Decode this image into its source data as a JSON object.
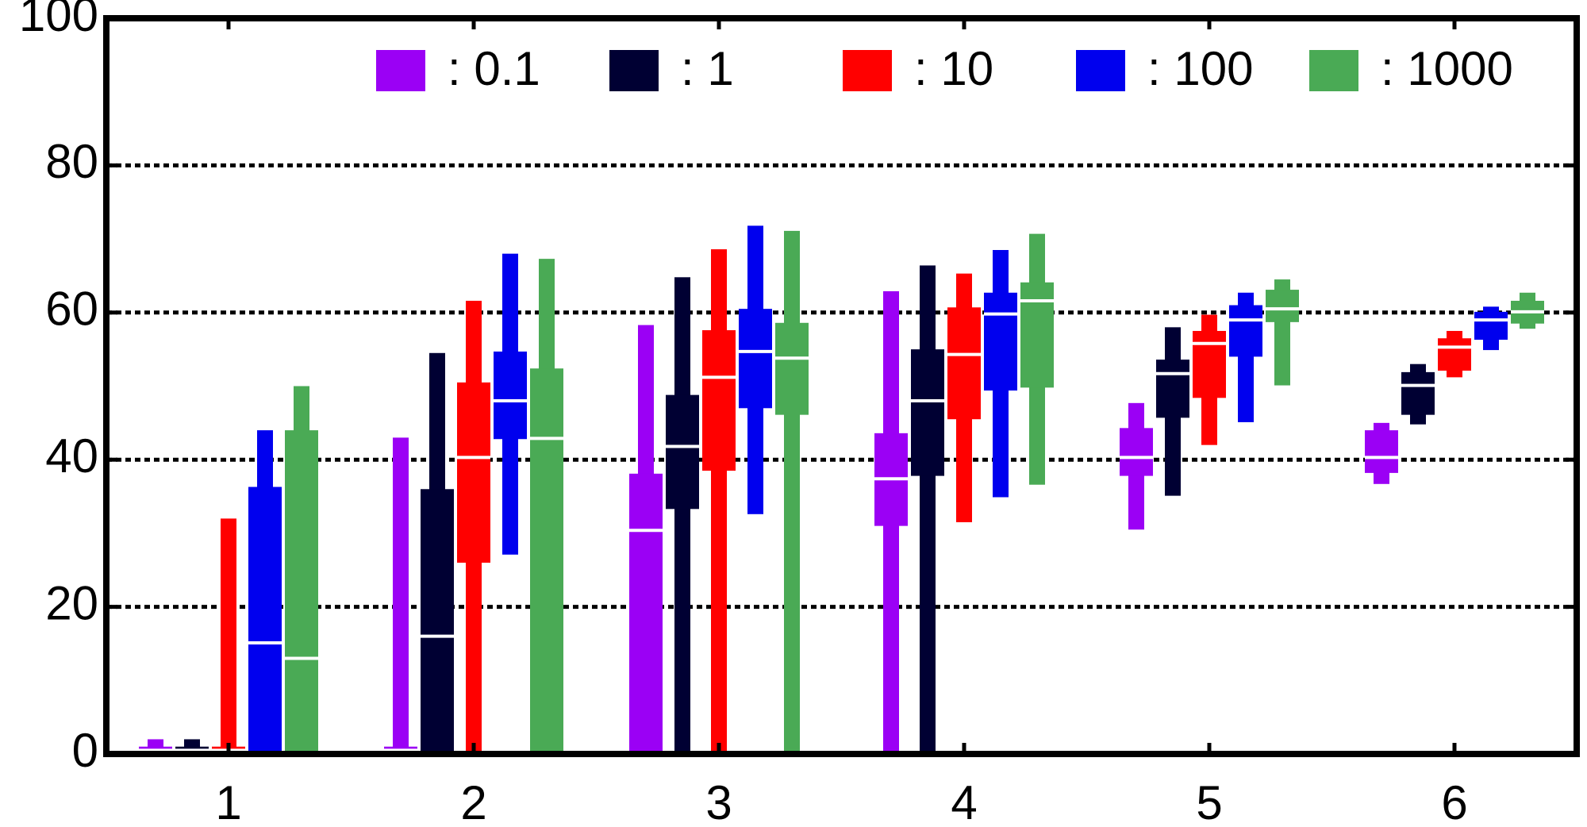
{
  "chart_data": {
    "type": "box",
    "categories": [
      "1",
      "2",
      "3",
      "4",
      "5",
      "6"
    ],
    "ylim": [
      0,
      100
    ],
    "yticks": [
      0,
      20,
      40,
      60,
      80,
      100
    ],
    "grid": true,
    "series": [
      {
        "name": ": 0.1",
        "color": "#9b00f5",
        "min": [
          0,
          0,
          0,
          0,
          30.5,
          36.7
        ],
        "q1": [
          0,
          0,
          0,
          31,
          37.8,
          38.2
        ],
        "median": [
          0.5,
          0.5,
          30.4,
          37.4,
          40.3,
          40.3
        ],
        "q3": [
          1,
          1,
          38.1,
          43.6,
          44.3,
          44
        ],
        "max": [
          2,
          43,
          58.3,
          62.9,
          47.7,
          45
        ]
      },
      {
        "name": ": 1",
        "color": "#000033",
        "min": [
          0,
          0,
          0,
          0,
          35.1,
          44.8
        ],
        "q1": [
          0,
          0,
          33.3,
          37.8,
          45.7,
          46.1
        ],
        "median": [
          0.5,
          16,
          41.8,
          48,
          51.7,
          50.1
        ],
        "q3": [
          1,
          36,
          48.8,
          55,
          53.6,
          51.9
        ],
        "max": [
          2,
          54.5,
          64.8,
          66.4,
          58,
          53
        ]
      },
      {
        "name": ": 10",
        "color": "#ff0000",
        "min": [
          0,
          0,
          0,
          31.5,
          42,
          51.2
        ],
        "q1": [
          0,
          26,
          38.5,
          45.5,
          48.4,
          52.1
        ],
        "median": [
          0.5,
          40.3,
          51.2,
          54.3,
          55.8,
          55.3
        ],
        "q3": [
          1,
          50.5,
          57.6,
          60.7,
          57.5,
          56.5
        ],
        "max": [
          32,
          61.6,
          68.6,
          65.3,
          59.7,
          57.5
        ]
      },
      {
        "name": ": 100",
        "color": "#0000ee",
        "min": [
          0,
          27.1,
          32.6,
          34.9,
          45.1,
          54.9
        ],
        "q1": [
          0,
          42.8,
          47,
          49.4,
          54,
          56.3
        ],
        "median": [
          15.1,
          48,
          54.7,
          59.8,
          59,
          59
        ],
        "q3": [
          36.3,
          54.7,
          60.5,
          62.7,
          61,
          60.1
        ],
        "max": [
          44,
          68,
          71.8,
          68.5,
          62.7,
          60.8
        ]
      },
      {
        "name": ": 1000",
        "color": "#4aaa55",
        "min": [
          0,
          0,
          0,
          36.6,
          50.1,
          57.8
        ],
        "q1": [
          0,
          0,
          46.1,
          49.8,
          58.7,
          58.5
        ],
        "median": [
          13,
          42.9,
          53.8,
          61.6,
          60.5,
          60.1
        ],
        "q3": [
          44,
          52.4,
          58.6,
          64.1,
          63.1,
          61.6
        ],
        "max": [
          50,
          67.3,
          71.1,
          70.7,
          64.5,
          62.7
        ]
      }
    ]
  }
}
